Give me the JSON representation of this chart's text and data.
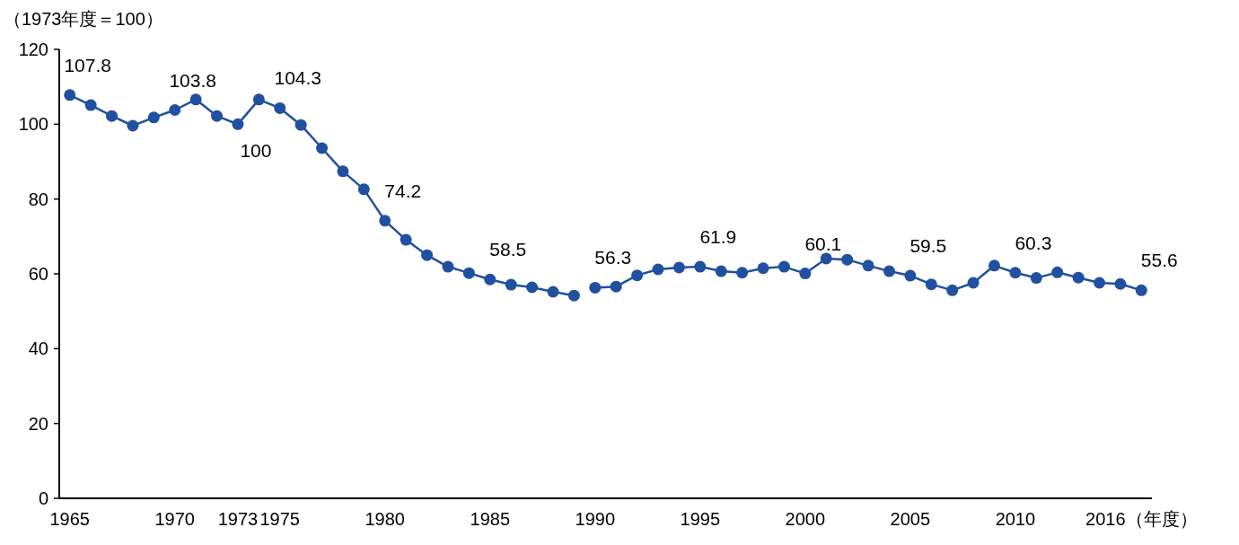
{
  "chart_data": {
    "type": "line",
    "ylabel": "（1973年度＝100）",
    "marker": "circle",
    "line_style": "solid",
    "grid": false,
    "xlim": [
      1964.5,
      2016.5
    ],
    "ylim": [
      0,
      120
    ],
    "yticks": [
      0,
      20,
      40,
      60,
      80,
      100,
      120
    ],
    "xticks": [
      1965,
      1970,
      1973,
      1975,
      1980,
      1985,
      1990,
      1995,
      2000,
      2005,
      2010,
      {
        "value": 2016,
        "label": "2016（年度）"
      }
    ],
    "series": [
      {
        "color": "#2150a0",
        "x": [
          1965,
          1966,
          1967,
          1968,
          1969,
          1970,
          1971,
          1972,
          1973,
          1974,
          1975,
          1976,
          1977,
          1978,
          1979,
          1980,
          1981,
          1982,
          1983,
          1984,
          1985,
          1986,
          1987,
          1988,
          1989
        ],
        "values": [
          107.8,
          105.1,
          102.2,
          99.6,
          101.8,
          103.8,
          106.6,
          102.2,
          100,
          106.6,
          104.3,
          99.8,
          93.6,
          87.4,
          82.6,
          74.2,
          69.1,
          65.0,
          61.9,
          60.2,
          58.5,
          57.1,
          56.4,
          55.2,
          54.2
        ],
        "value_labels": [
          "107.8",
          null,
          null,
          null,
          null,
          "103.8",
          null,
          null,
          "100",
          null,
          "104.3",
          null,
          null,
          null,
          null,
          "74.2",
          null,
          null,
          null,
          null,
          "58.5",
          null,
          null,
          null,
          null
        ]
      },
      {
        "color": "#2150a0",
        "x": [
          1990,
          1991,
          1992,
          1993,
          1994,
          1995,
          1996,
          1997,
          1998,
          1999,
          2000,
          2001,
          2002,
          2003,
          2004,
          2005,
          2006,
          2007,
          2008,
          2009,
          2010,
          2011,
          2012,
          2013,
          2014,
          2015,
          2016
        ],
        "values": [
          56.3,
          56.6,
          59.6,
          61.2,
          61.7,
          61.9,
          60.7,
          60.3,
          61.5,
          61.9,
          60.1,
          64.1,
          63.8,
          62.2,
          60.7,
          59.5,
          57.2,
          55.6,
          57.6,
          62.2,
          60.3,
          58.9,
          60.4,
          59.0,
          57.6,
          57.3,
          55.6
        ],
        "value_labels": [
          "56.3",
          null,
          null,
          null,
          null,
          "61.9",
          null,
          null,
          null,
          null,
          "60.1",
          null,
          null,
          null,
          null,
          "59.5",
          null,
          null,
          null,
          null,
          "60.3",
          null,
          null,
          null,
          null,
          null,
          "55.6"
        ]
      }
    ]
  }
}
